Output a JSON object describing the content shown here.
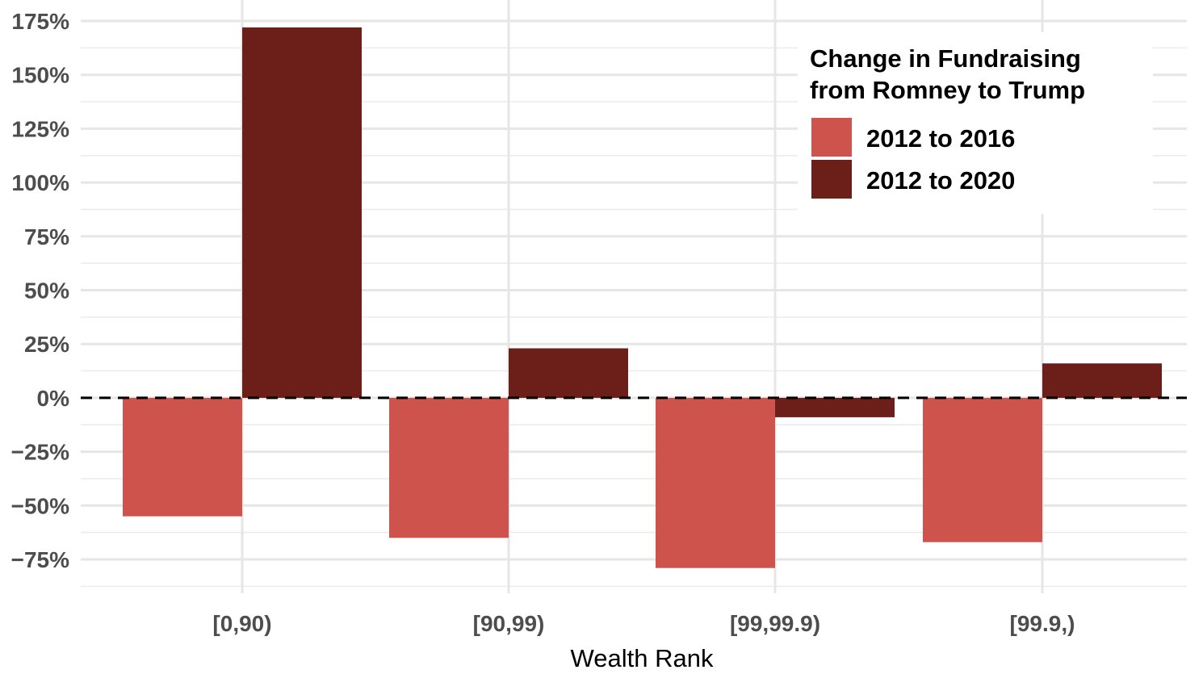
{
  "chart_data": {
    "type": "bar",
    "xlabel": "Wealth Rank",
    "ylabel": "",
    "categories": [
      "[0,90)",
      "[90,99)",
      "[99,99.9)",
      "[99.9,)"
    ],
    "series": [
      {
        "name": "2012 to 2016",
        "color": "#cd534c",
        "values": [
          -55,
          -65,
          -79,
          -67
        ]
      },
      {
        "name": "2012 to 2020",
        "color": "#6c1e19",
        "values": [
          172,
          23,
          -9,
          16
        ]
      }
    ],
    "ylim": [
      -88,
      180
    ],
    "y_ticks": [
      -75,
      -50,
      -25,
      0,
      25,
      50,
      75,
      100,
      125,
      150,
      175
    ],
    "y_tick_labels": [
      "−75%",
      "−50%",
      "−25%",
      "0%",
      "25%",
      "50%",
      "75%",
      "100%",
      "125%",
      "150%",
      "175%"
    ],
    "reference_line": {
      "y": 0,
      "style": "dashed"
    },
    "grid": true,
    "legend": {
      "title_lines": [
        "Change in Fundraising",
        "from Romney to Trump"
      ],
      "placement": "top-right"
    }
  }
}
